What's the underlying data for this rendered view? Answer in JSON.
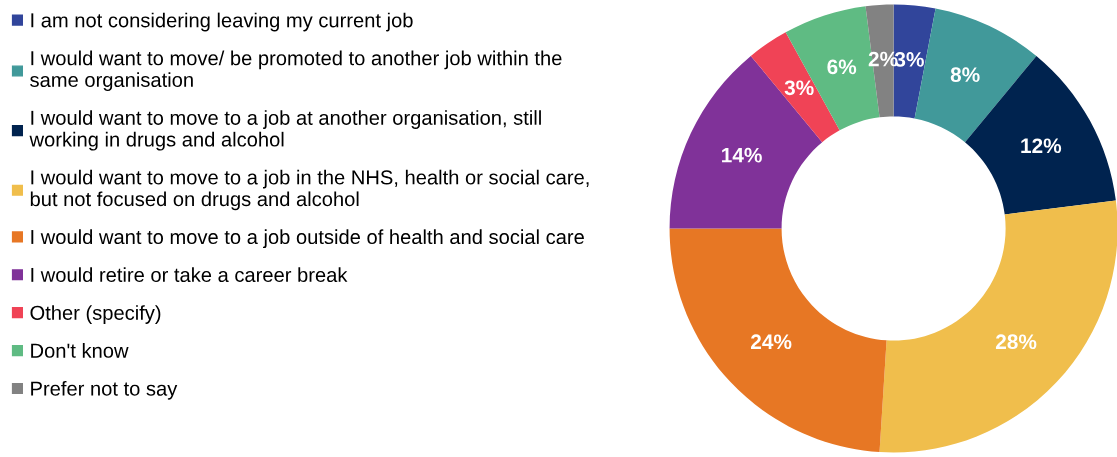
{
  "chart_data": {
    "type": "donut",
    "categories": [
      "I am not considering leaving my current job",
      "I would want to move/ be promoted to another job within the\nsame organisation",
      "I would want to move to a job at another organisation, still\nworking in drugs and alcohol",
      "I would want to move to a job in the NHS, health or social care,\nbut not focused on drugs and alcohol",
      "I would want to move to a job outside of health and social care",
      "I would retire or take a career break",
      "Other (specify)",
      "Don't know",
      "Prefer not to say"
    ],
    "values": [
      3,
      8,
      12,
      28,
      24,
      14,
      3,
      6,
      2
    ],
    "value_labels": [
      "3%",
      "8%",
      "12%",
      "28%",
      "24%",
      "14%",
      "3%",
      "6%",
      "2%"
    ],
    "colors": [
      "#31459b",
      "#41999a",
      "#00234f",
      "#f0be4c",
      "#e77724",
      "#803299",
      "#f04356",
      "#5fbb83",
      "#828282"
    ],
    "legend": "left"
  }
}
